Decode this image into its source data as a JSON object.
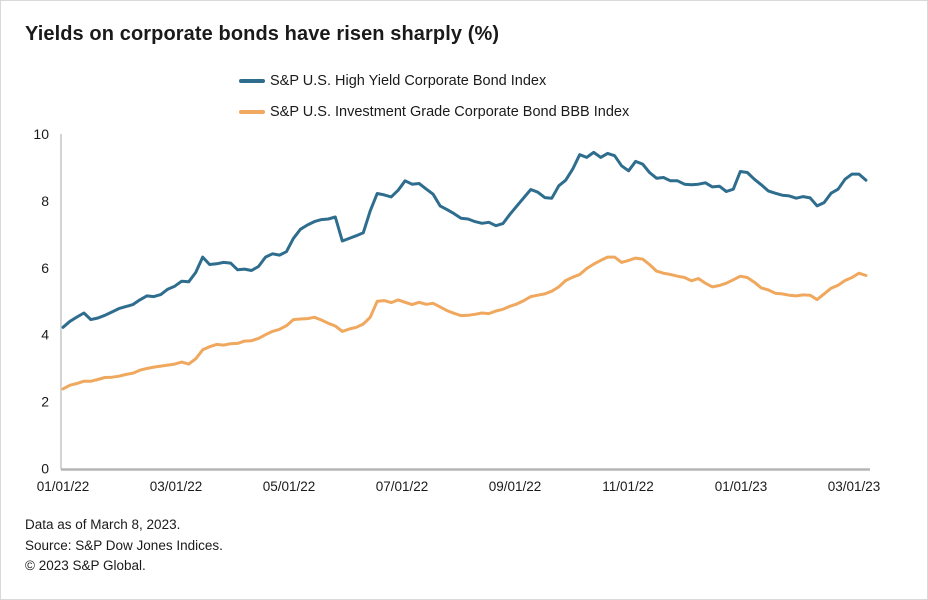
{
  "title": "Yields on corporate bonds have risen sharply (%)",
  "legend": [
    {
      "label": "S&P U.S. High Yield Corporate Bond Index",
      "color": "#2e6d8e"
    },
    {
      "label": "S&P U.S. Investment Grade Corporate Bond BBB Index",
      "color": "#efa85d"
    }
  ],
  "footnotes": [
    "Data as of March 8, 2023.",
    "Source: S&P Dow Jones Indices.",
    "© 2023 S&P Global."
  ],
  "chart_data": {
    "type": "line",
    "title": "Yields on corporate bonds have risen sharply (%)",
    "x_start": "01/01/22",
    "x_end": "03/08/23",
    "sampling": "uniform",
    "grid": false,
    "legend_position": "top-center",
    "x_axis": {
      "tick_labels": [
        "01/01/22",
        "03/01/22",
        "05/01/22",
        "07/01/22",
        "09/01/22",
        "11/01/22",
        "01/01/23",
        "03/01/23"
      ]
    },
    "y_axis": {
      "ticks": [
        0,
        2,
        4,
        6,
        8,
        10
      ],
      "range": [
        0,
        10
      ]
    },
    "series": [
      {
        "name": "S&P U.S. High Yield Corporate Bond Index",
        "color": "#2e6d8e",
        "values": [
          4.22,
          4.4,
          4.53,
          4.65,
          4.45,
          4.5,
          4.58,
          4.68,
          4.78,
          4.84,
          4.9,
          5.04,
          5.16,
          5.14,
          5.2,
          5.36,
          5.45,
          5.6,
          5.58,
          5.86,
          6.32,
          6.1,
          6.12,
          6.16,
          6.14,
          5.94,
          5.96,
          5.92,
          6.04,
          6.32,
          6.42,
          6.38,
          6.48,
          6.88,
          7.15,
          7.28,
          7.38,
          7.44,
          7.46,
          7.52,
          6.8,
          6.88,
          6.96,
          7.05,
          7.7,
          8.22,
          8.18,
          8.12,
          8.32,
          8.6,
          8.5,
          8.52,
          8.36,
          8.2,
          7.85,
          7.74,
          7.62,
          7.48,
          7.46,
          7.38,
          7.33,
          7.36,
          7.26,
          7.32,
          7.6,
          7.85,
          8.1,
          8.34,
          8.26,
          8.1,
          8.08,
          8.45,
          8.62,
          8.95,
          9.38,
          9.3,
          9.45,
          9.3,
          9.42,
          9.35,
          9.05,
          8.9,
          9.18,
          9.1,
          8.85,
          8.68,
          8.7,
          8.6,
          8.6,
          8.5,
          8.48,
          8.5,
          8.54,
          8.42,
          8.44,
          8.28,
          8.35,
          8.88,
          8.85,
          8.65,
          8.48,
          8.3,
          8.23,
          8.17,
          8.15,
          8.08,
          8.13,
          8.09,
          7.85,
          7.95,
          8.23,
          8.35,
          8.65,
          8.8,
          8.8,
          8.62
        ]
      },
      {
        "name": "S&P U.S. Investment Grade Corporate Bond BBB Index",
        "color": "#efa85d",
        "values": [
          2.38,
          2.49,
          2.54,
          2.61,
          2.61,
          2.66,
          2.72,
          2.73,
          2.76,
          2.81,
          2.85,
          2.94,
          2.99,
          3.03,
          3.06,
          3.09,
          3.12,
          3.18,
          3.12,
          3.28,
          3.55,
          3.64,
          3.71,
          3.69,
          3.73,
          3.74,
          3.81,
          3.82,
          3.89,
          4.0,
          4.1,
          4.16,
          4.27,
          4.45,
          4.47,
          4.48,
          4.52,
          4.44,
          4.34,
          4.26,
          4.1,
          4.17,
          4.22,
          4.32,
          4.52,
          5.0,
          5.02,
          4.96,
          5.04,
          4.97,
          4.9,
          4.97,
          4.91,
          4.94,
          4.83,
          4.72,
          4.64,
          4.57,
          4.58,
          4.61,
          4.65,
          4.63,
          4.71,
          4.76,
          4.85,
          4.92,
          5.02,
          5.14,
          5.18,
          5.22,
          5.3,
          5.43,
          5.62,
          5.72,
          5.8,
          5.98,
          6.11,
          6.22,
          6.32,
          6.32,
          6.16,
          6.22,
          6.29,
          6.26,
          6.1,
          5.9,
          5.84,
          5.8,
          5.75,
          5.71,
          5.61,
          5.68,
          5.54,
          5.43,
          5.47,
          5.54,
          5.64,
          5.75,
          5.71,
          5.57,
          5.4,
          5.34,
          5.24,
          5.22,
          5.18,
          5.16,
          5.19,
          5.18,
          5.05,
          5.22,
          5.39,
          5.48,
          5.62,
          5.71,
          5.84,
          5.77
        ]
      }
    ]
  }
}
